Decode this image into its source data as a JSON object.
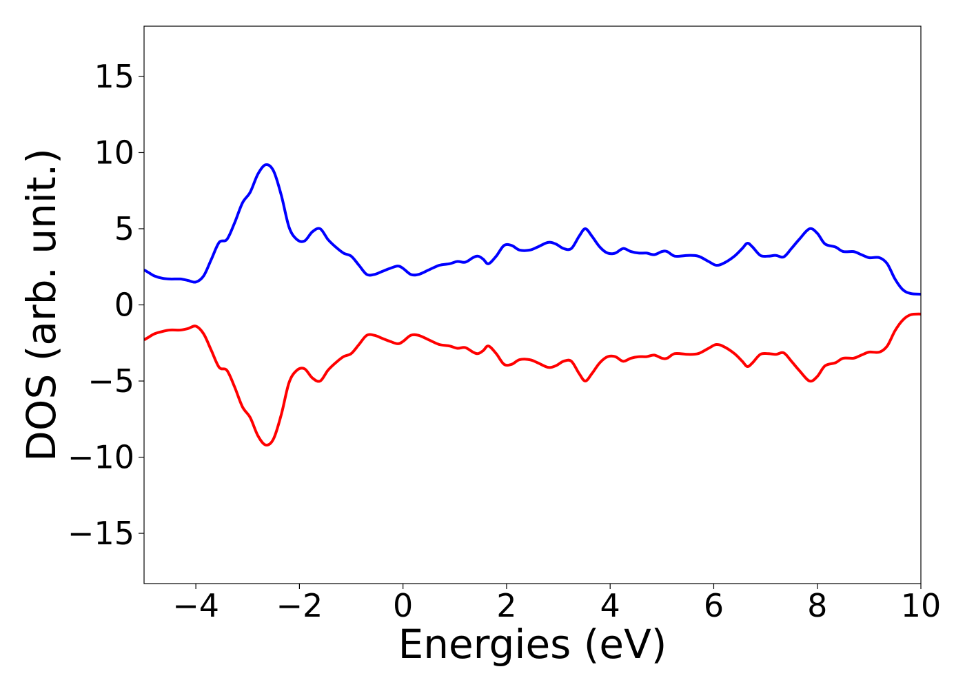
{
  "chart_data": {
    "type": "line",
    "title": "",
    "xlabel": "Energies (eV)",
    "ylabel": "DOS (arb. unit.)",
    "xlim": [
      -5,
      10
    ],
    "ylim": [
      -18.3,
      18.3
    ],
    "xticks": [
      -4,
      -2,
      0,
      2,
      4,
      6,
      8,
      10
    ],
    "xtick_labels": [
      "−4",
      "−2",
      "0",
      "2",
      "4",
      "6",
      "8",
      "10"
    ],
    "yticks": [
      15,
      10,
      5,
      0,
      -5,
      -10,
      -15
    ],
    "ytick_labels": [
      "15",
      "10",
      "5",
      "0",
      "−5",
      "−10",
      "−15"
    ],
    "grid": false,
    "legend": "none",
    "series": [
      {
        "color": "#0000ff",
        "points": [
          [
            -5.0,
            2.3
          ],
          [
            -4.9,
            2.1
          ],
          [
            -4.8,
            1.9
          ],
          [
            -4.65,
            1.75
          ],
          [
            -4.5,
            1.7
          ],
          [
            -4.3,
            1.7
          ],
          [
            -4.15,
            1.6
          ],
          [
            -4.0,
            1.5
          ],
          [
            -3.85,
            1.9
          ],
          [
            -3.7,
            3.0
          ],
          [
            -3.55,
            4.1
          ],
          [
            -3.4,
            4.3
          ],
          [
            -3.25,
            5.4
          ],
          [
            -3.1,
            6.7
          ],
          [
            -2.95,
            7.4
          ],
          [
            -2.8,
            8.6
          ],
          [
            -2.65,
            9.2
          ],
          [
            -2.5,
            8.8
          ],
          [
            -2.35,
            7.2
          ],
          [
            -2.2,
            5.1
          ],
          [
            -2.05,
            4.3
          ],
          [
            -1.9,
            4.2
          ],
          [
            -1.75,
            4.8
          ],
          [
            -1.6,
            5.0
          ],
          [
            -1.45,
            4.3
          ],
          [
            -1.3,
            3.8
          ],
          [
            -1.15,
            3.4
          ],
          [
            -1.0,
            3.2
          ],
          [
            -0.85,
            2.6
          ],
          [
            -0.7,
            2.0
          ],
          [
            -0.55,
            2.0
          ],
          [
            -0.4,
            2.2
          ],
          [
            -0.25,
            2.4
          ],
          [
            -0.1,
            2.55
          ],
          [
            0.0,
            2.4
          ],
          [
            0.15,
            2.0
          ],
          [
            0.3,
            2.0
          ],
          [
            0.5,
            2.3
          ],
          [
            0.7,
            2.6
          ],
          [
            0.9,
            2.7
          ],
          [
            1.05,
            2.85
          ],
          [
            1.2,
            2.8
          ],
          [
            1.35,
            3.1
          ],
          [
            1.45,
            3.2
          ],
          [
            1.55,
            3.0
          ],
          [
            1.65,
            2.7
          ],
          [
            1.8,
            3.2
          ],
          [
            1.95,
            3.9
          ],
          [
            2.1,
            3.9
          ],
          [
            2.25,
            3.6
          ],
          [
            2.45,
            3.6
          ],
          [
            2.6,
            3.8
          ],
          [
            2.8,
            4.1
          ],
          [
            2.95,
            4.0
          ],
          [
            3.1,
            3.7
          ],
          [
            3.25,
            3.7
          ],
          [
            3.4,
            4.5
          ],
          [
            3.52,
            5.0
          ],
          [
            3.65,
            4.5
          ],
          [
            3.8,
            3.8
          ],
          [
            3.95,
            3.4
          ],
          [
            4.1,
            3.4
          ],
          [
            4.25,
            3.7
          ],
          [
            4.4,
            3.5
          ],
          [
            4.55,
            3.4
          ],
          [
            4.7,
            3.4
          ],
          [
            4.85,
            3.3
          ],
          [
            5.0,
            3.5
          ],
          [
            5.1,
            3.5
          ],
          [
            5.25,
            3.2
          ],
          [
            5.5,
            3.25
          ],
          [
            5.7,
            3.2
          ],
          [
            5.9,
            2.85
          ],
          [
            6.05,
            2.6
          ],
          [
            6.2,
            2.75
          ],
          [
            6.4,
            3.2
          ],
          [
            6.55,
            3.7
          ],
          [
            6.65,
            4.05
          ],
          [
            6.75,
            3.8
          ],
          [
            6.9,
            3.25
          ],
          [
            7.05,
            3.2
          ],
          [
            7.2,
            3.25
          ],
          [
            7.35,
            3.15
          ],
          [
            7.5,
            3.7
          ],
          [
            7.65,
            4.3
          ],
          [
            7.85,
            5.0
          ],
          [
            8.0,
            4.7
          ],
          [
            8.15,
            4.0
          ],
          [
            8.35,
            3.8
          ],
          [
            8.5,
            3.5
          ],
          [
            8.7,
            3.5
          ],
          [
            8.85,
            3.3
          ],
          [
            9.0,
            3.1
          ],
          [
            9.2,
            3.1
          ],
          [
            9.35,
            2.7
          ],
          [
            9.5,
            1.7
          ],
          [
            9.65,
            1.0
          ],
          [
            9.8,
            0.75
          ],
          [
            10.0,
            0.7
          ]
        ]
      },
      {
        "color": "#ff0000",
        "points": [
          [
            -5.0,
            -2.3
          ],
          [
            -4.9,
            -2.1
          ],
          [
            -4.8,
            -1.9
          ],
          [
            -4.65,
            -1.75
          ],
          [
            -4.5,
            -1.65
          ],
          [
            -4.3,
            -1.65
          ],
          [
            -4.15,
            -1.55
          ],
          [
            -4.0,
            -1.4
          ],
          [
            -3.85,
            -1.9
          ],
          [
            -3.7,
            -3.0
          ],
          [
            -3.55,
            -4.1
          ],
          [
            -3.4,
            -4.3
          ],
          [
            -3.25,
            -5.4
          ],
          [
            -3.1,
            -6.7
          ],
          [
            -2.95,
            -7.4
          ],
          [
            -2.8,
            -8.6
          ],
          [
            -2.65,
            -9.2
          ],
          [
            -2.5,
            -8.8
          ],
          [
            -2.35,
            -7.2
          ],
          [
            -2.2,
            -5.1
          ],
          [
            -2.05,
            -4.3
          ],
          [
            -1.9,
            -4.2
          ],
          [
            -1.75,
            -4.8
          ],
          [
            -1.6,
            -5.0
          ],
          [
            -1.45,
            -4.3
          ],
          [
            -1.3,
            -3.8
          ],
          [
            -1.15,
            -3.4
          ],
          [
            -1.0,
            -3.2
          ],
          [
            -0.85,
            -2.6
          ],
          [
            -0.7,
            -2.0
          ],
          [
            -0.55,
            -2.0
          ],
          [
            -0.4,
            -2.2
          ],
          [
            -0.25,
            -2.4
          ],
          [
            -0.1,
            -2.55
          ],
          [
            0.0,
            -2.4
          ],
          [
            0.15,
            -2.0
          ],
          [
            0.3,
            -2.0
          ],
          [
            0.5,
            -2.3
          ],
          [
            0.7,
            -2.6
          ],
          [
            0.9,
            -2.7
          ],
          [
            1.05,
            -2.85
          ],
          [
            1.2,
            -2.8
          ],
          [
            1.35,
            -3.1
          ],
          [
            1.45,
            -3.2
          ],
          [
            1.55,
            -3.0
          ],
          [
            1.65,
            -2.7
          ],
          [
            1.8,
            -3.2
          ],
          [
            1.95,
            -3.9
          ],
          [
            2.1,
            -3.9
          ],
          [
            2.25,
            -3.6
          ],
          [
            2.45,
            -3.6
          ],
          [
            2.6,
            -3.8
          ],
          [
            2.8,
            -4.1
          ],
          [
            2.95,
            -4.0
          ],
          [
            3.1,
            -3.7
          ],
          [
            3.25,
            -3.7
          ],
          [
            3.4,
            -4.5
          ],
          [
            3.52,
            -5.0
          ],
          [
            3.65,
            -4.5
          ],
          [
            3.8,
            -3.8
          ],
          [
            3.95,
            -3.4
          ],
          [
            4.1,
            -3.4
          ],
          [
            4.25,
            -3.7
          ],
          [
            4.4,
            -3.5
          ],
          [
            4.55,
            -3.4
          ],
          [
            4.7,
            -3.4
          ],
          [
            4.85,
            -3.3
          ],
          [
            5.0,
            -3.5
          ],
          [
            5.1,
            -3.5
          ],
          [
            5.25,
            -3.2
          ],
          [
            5.5,
            -3.25
          ],
          [
            5.7,
            -3.2
          ],
          [
            5.9,
            -2.85
          ],
          [
            6.05,
            -2.6
          ],
          [
            6.2,
            -2.75
          ],
          [
            6.4,
            -3.2
          ],
          [
            6.55,
            -3.7
          ],
          [
            6.65,
            -4.05
          ],
          [
            6.75,
            -3.8
          ],
          [
            6.9,
            -3.25
          ],
          [
            7.05,
            -3.2
          ],
          [
            7.2,
            -3.25
          ],
          [
            7.35,
            -3.15
          ],
          [
            7.5,
            -3.7
          ],
          [
            7.65,
            -4.3
          ],
          [
            7.85,
            -5.0
          ],
          [
            8.0,
            -4.7
          ],
          [
            8.15,
            -4.0
          ],
          [
            8.35,
            -3.8
          ],
          [
            8.5,
            -3.5
          ],
          [
            8.7,
            -3.5
          ],
          [
            8.85,
            -3.3
          ],
          [
            9.0,
            -3.1
          ],
          [
            9.2,
            -3.1
          ],
          [
            9.35,
            -2.7
          ],
          [
            9.5,
            -1.7
          ],
          [
            9.65,
            -1.0
          ],
          [
            9.8,
            -0.65
          ],
          [
            10.0,
            -0.6
          ]
        ]
      }
    ]
  }
}
